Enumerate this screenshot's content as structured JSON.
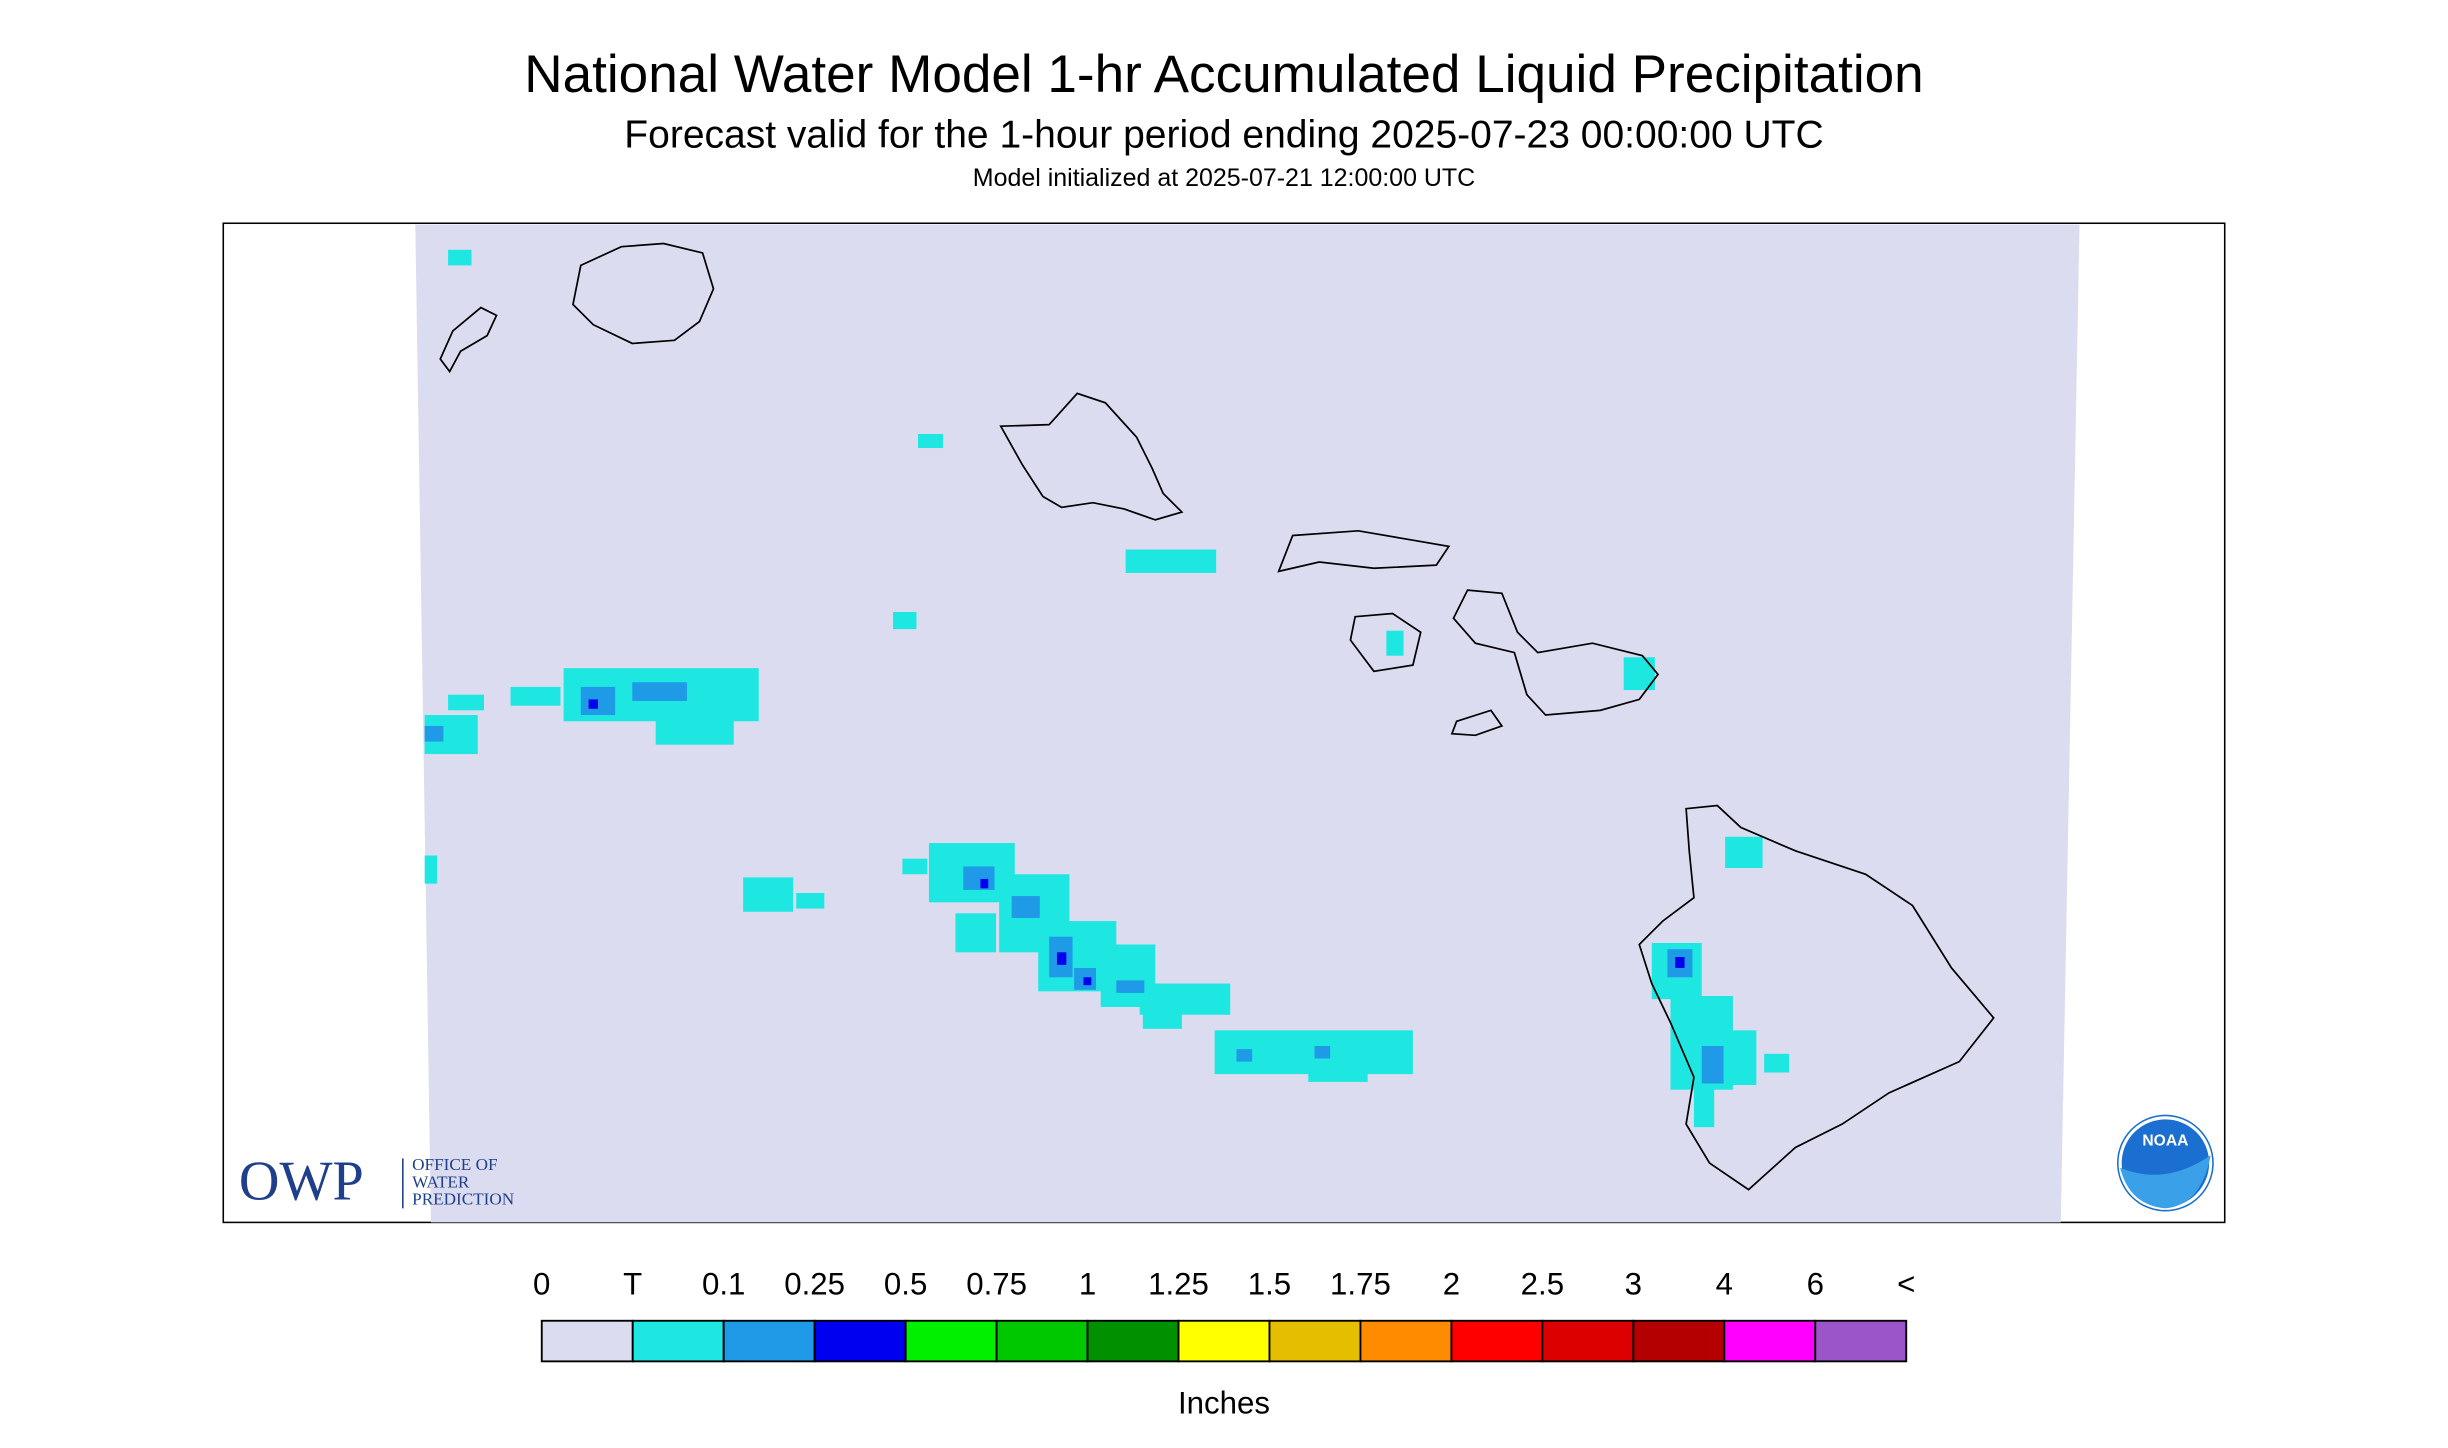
{
  "header": {
    "title": "National Water Model 1-hr Accumulated Liquid Precipitation",
    "subtitle": "Forecast valid for the 1-hour period ending 2025-07-23 00:00:00 UTC",
    "init": "Model initialized at 2025-07-21 12:00:00 UTC"
  },
  "logos": {
    "owp": "OWP",
    "owp_lines": [
      "OFFICE OF",
      "WATER",
      "PREDICTION"
    ],
    "noaa": "NOAA"
  },
  "legend": {
    "labels": [
      "0",
      "T",
      "0.1",
      "0.25",
      "0.5",
      "0.75",
      "1",
      "1.25",
      "1.5",
      "1.75",
      "2",
      "2.5",
      "3",
      "4",
      "6",
      "<"
    ],
    "colors": [
      "#dcdcf0",
      "#1ee6e0",
      "#1e9ae6",
      "#0000f0",
      "#00f000",
      "#00c800",
      "#009000",
      "#ffff00",
      "#e6be00",
      "#ff8c00",
      "#ff0000",
      "#dc0000",
      "#b40000",
      "#ff00ff",
      "#9b55c8"
    ],
    "unit": "Inches"
  }
}
